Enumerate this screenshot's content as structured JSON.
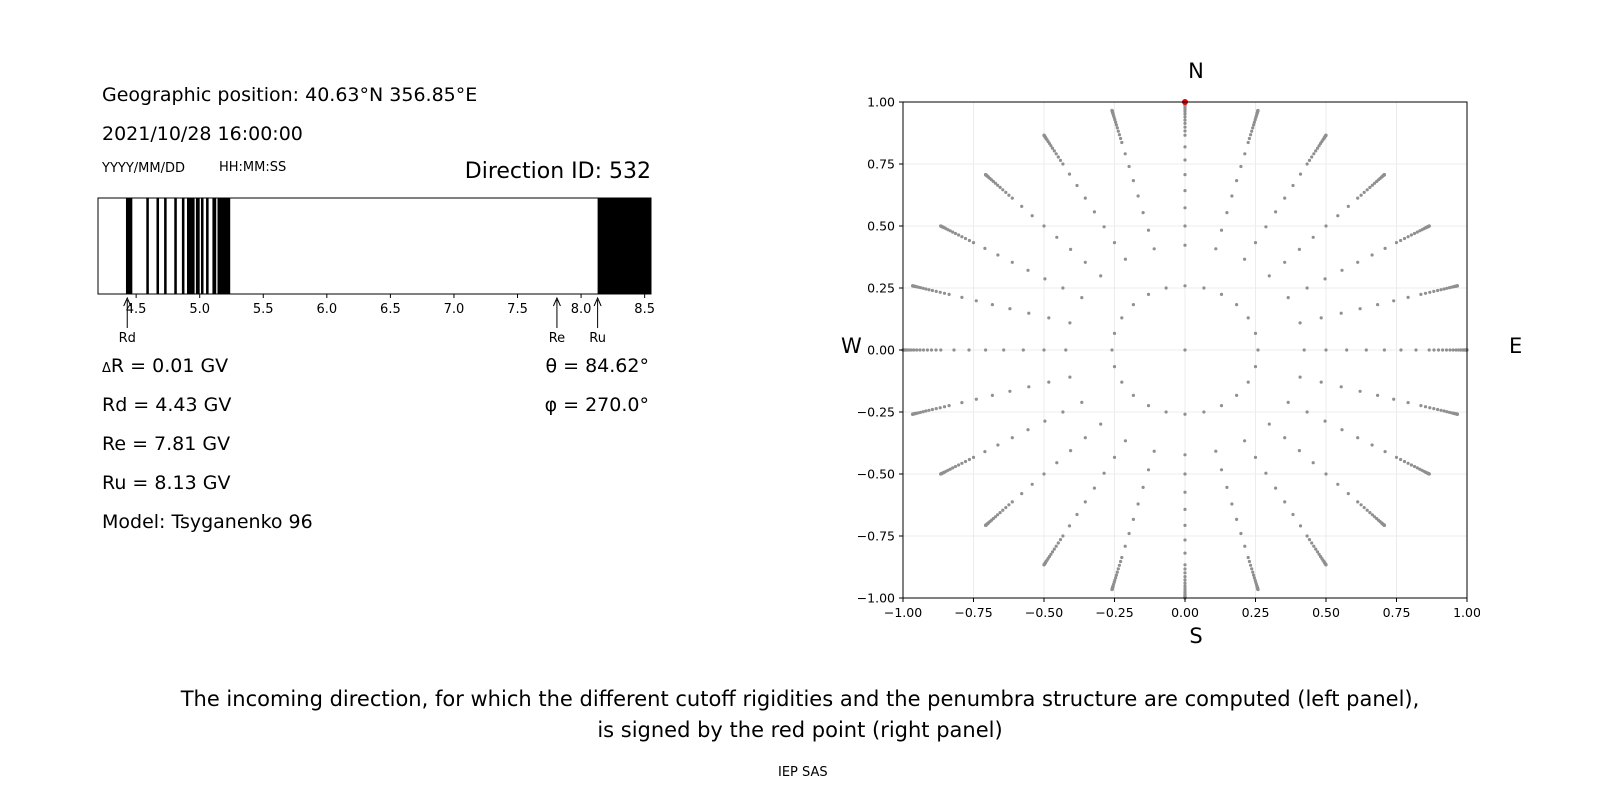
{
  "header": {
    "geo_position": "Geographic position: 40.63°N 356.85°E",
    "datetime": "2021/10/28 16:00:00",
    "date_format": "YYYY/MM/DD",
    "time_format": "HH:MM:SS",
    "direction_id": "Direction ID: 532"
  },
  "values": {
    "delta_r_symbol": "Δ",
    "delta_r": "R = 0.01 GV",
    "rd": "Rd = 4.43 GV",
    "re": "Re = 7.81 GV",
    "ru": "Ru = 8.13 GV",
    "model": "Model: Tsyganenko 96",
    "theta": "θ = 84.62°",
    "phi": "φ = 270.0°"
  },
  "compass": {
    "north": "N",
    "south": "S",
    "west": "W",
    "east": "E"
  },
  "caption": {
    "line1": "The incoming direction, for which the different cutoff rigidities and the penumbra structure are computed (left panel),",
    "line2": "is signed by the red point (right panel)"
  },
  "footer": "IEP SAS",
  "chart_data": [
    {
      "type": "penumbra-bar",
      "xlim": [
        4.2,
        8.55
      ],
      "ticks": [
        4.5,
        5.0,
        5.5,
        6.0,
        6.5,
        7.0,
        7.5,
        8.0,
        8.5
      ],
      "tick_labels": [
        "4.5",
        "5.0",
        "5.5",
        "6.0",
        "6.5",
        "7.0",
        "7.5",
        "8.0",
        "8.5"
      ],
      "forbidden_bands": [
        [
          4.42,
          4.47
        ],
        [
          4.58,
          4.6
        ],
        [
          4.66,
          4.68
        ],
        [
          4.72,
          4.74
        ],
        [
          4.8,
          4.82
        ],
        [
          4.86,
          4.88
        ],
        [
          4.9,
          4.96
        ],
        [
          4.97,
          5.0
        ],
        [
          5.01,
          5.03
        ],
        [
          5.05,
          5.07
        ],
        [
          5.1,
          5.13
        ],
        [
          5.14,
          5.24
        ],
        [
          8.13,
          8.55
        ]
      ],
      "markers": [
        {
          "label": "Rd",
          "value": 4.43
        },
        {
          "label": "Re",
          "value": 7.81
        },
        {
          "label": "Ru",
          "value": 8.13
        }
      ]
    },
    {
      "type": "scatter",
      "xlim": [
        -1.0,
        1.0
      ],
      "ylim": [
        -1.0,
        1.0
      ],
      "xticks": [
        -1.0,
        -0.75,
        -0.5,
        -0.25,
        0.0,
        0.25,
        0.5,
        0.75,
        1.0
      ],
      "xtick_labels": [
        "−1.00",
        "−0.75",
        "−0.50",
        "−0.25",
        "0.00",
        "0.25",
        "0.50",
        "0.75",
        "1.00"
      ],
      "yticks": [
        -1.0,
        -0.75,
        -0.5,
        -0.25,
        0.0,
        0.25,
        0.5,
        0.75,
        1.0
      ],
      "ytick_labels": [
        "−1.00",
        "−0.75",
        "−0.50",
        "−0.25",
        "0.00",
        "0.25",
        "0.50",
        "0.75",
        "1.00"
      ],
      "grid": true,
      "grid_points": {
        "azimuths_deg_step": 15,
        "zenith_deg": [
          0,
          15,
          25,
          30,
          35,
          40,
          45,
          50,
          55,
          60,
          62,
          64,
          66,
          68,
          70,
          72,
          74,
          76,
          78,
          80,
          81,
          82,
          83,
          84,
          85,
          86,
          87,
          88,
          89,
          90
        ],
        "r_formula": "sin(zenith)",
        "color": "#909090"
      },
      "highlight_point": {
        "x": 0.0,
        "y": 1.0,
        "color": "#e00000"
      }
    }
  ]
}
